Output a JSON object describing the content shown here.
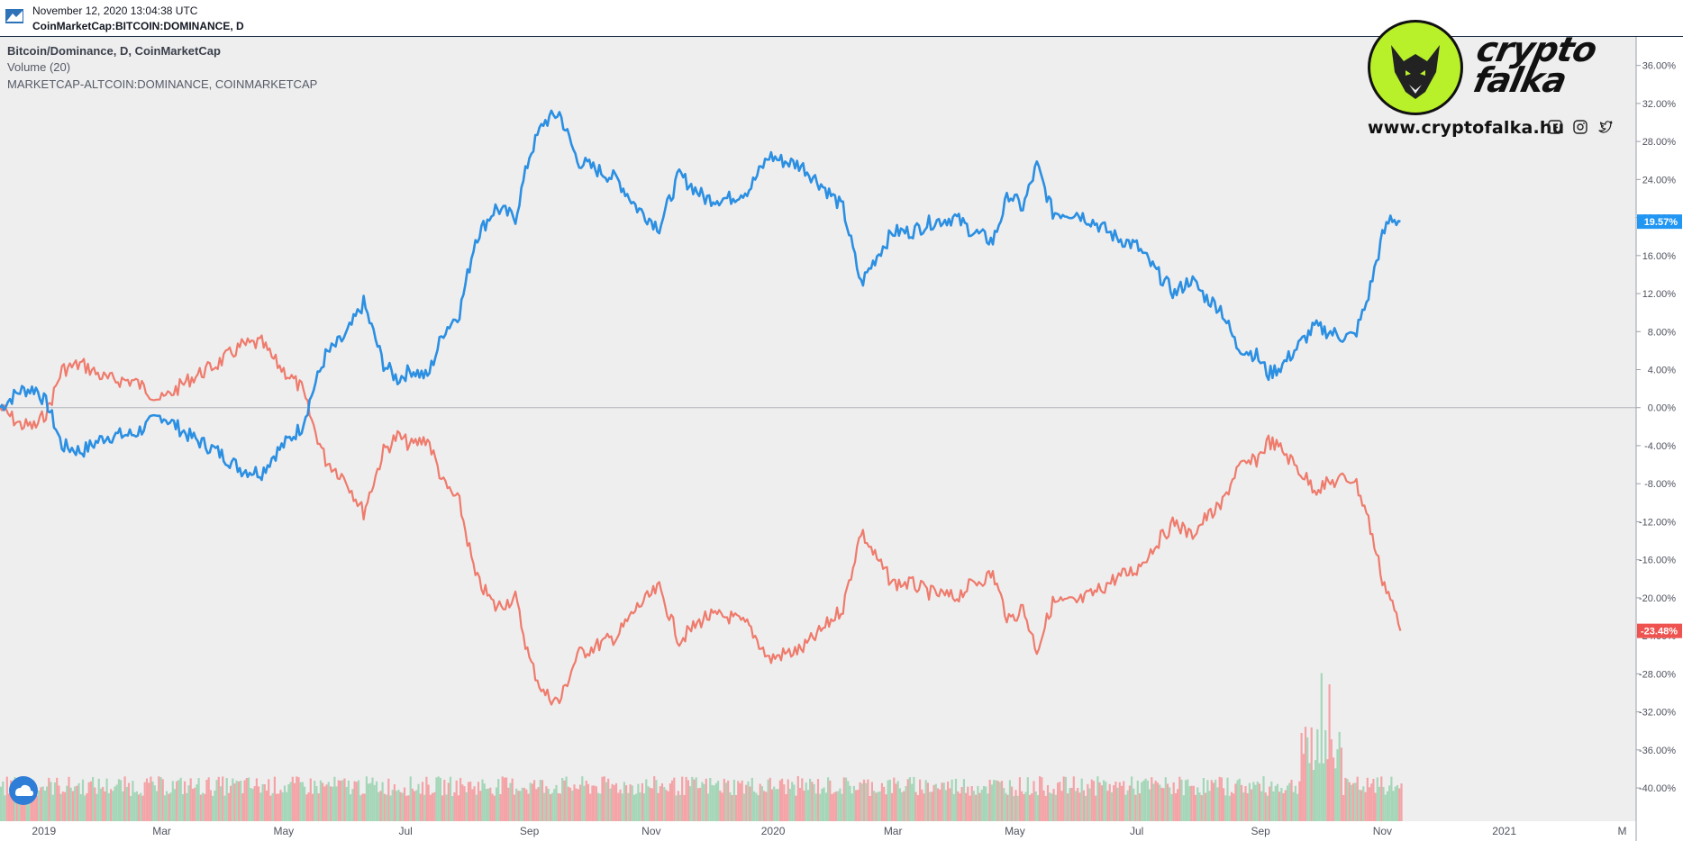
{
  "header": {
    "snapshot_date": "November 12, 2020 13:04:38 UTC",
    "symbol": "CoinMarketCap:BITCOIN:DOMINANCE, D"
  },
  "legend": {
    "main": "Bitcoin/Dominance, D, CoinMarketCap",
    "volume": "Volume (20)",
    "compare": "MARKETCAP-ALTCOIN:DOMINANCE, COINMARKETCAP"
  },
  "brand": {
    "name_line1": "crypto",
    "name_line2": "falka",
    "url": "www.cryptofalka.hu",
    "social_icons": [
      "facebook-icon",
      "instagram-icon",
      "twitter-icon"
    ]
  },
  "colors": {
    "btc": "#2b8fe2",
    "alt": "#ef7b6c",
    "vol_up": "#a5d6b8",
    "vol_down": "#f4a3a6",
    "plot_bg": "#eeeeef",
    "badge_btc": "#2196f3",
    "badge_alt": "#ef5350",
    "logo_bg": "#b8f02a"
  },
  "chart_data": {
    "type": "line",
    "y_unit": "%",
    "ylim": [
      -43.5,
      39
    ],
    "y_ticks": [
      "36.00%",
      "32.00%",
      "28.00%",
      "24.00%",
      "20.00%",
      "16.00%",
      "12.00%",
      "8.00%",
      "4.00%",
      "0.00%",
      "-4.00%",
      "-8.00%",
      "-12.00%",
      "-16.00%",
      "-20.00%",
      "-24.00%",
      "-28.00%",
      "-32.00%",
      "-36.00%",
      "-40.00%"
    ],
    "y_tick_values": [
      36,
      32,
      28,
      24,
      20,
      16,
      12,
      8,
      4,
      0,
      -4,
      -8,
      -12,
      -16,
      -20,
      -24,
      -28,
      -32,
      -36,
      -40
    ],
    "x_ticks": [
      "2019",
      "Mar",
      "May",
      "Jul",
      "Sep",
      "Nov",
      "2020",
      "Mar",
      "May",
      "Jul",
      "Sep",
      "Nov",
      "2021",
      "M"
    ],
    "x_tick_dates": [
      "2019-01-01",
      "2019-03-01",
      "2019-05-01",
      "2019-07-01",
      "2019-09-01",
      "2019-11-01",
      "2020-01-01",
      "2020-03-01",
      "2020-05-01",
      "2020-07-01",
      "2020-09-01",
      "2020-11-01",
      "2021-01-01",
      "2021-03-01"
    ],
    "x_range": [
      "2018-12-10",
      "2021-03-08"
    ],
    "grid": false,
    "zero_line": true,
    "last_values": {
      "btc": "19.57%",
      "alt": "-23.48%"
    },
    "series": [
      {
        "key": "btc",
        "x": [
          "2018-12-10",
          "2018-12-20",
          "2018-12-28",
          "2019-01-03",
          "2019-01-10",
          "2019-01-20",
          "2019-02-01",
          "2019-02-15",
          "2019-03-01",
          "2019-03-15",
          "2019-03-28",
          "2019-04-10",
          "2019-04-20",
          "2019-04-26",
          "2019-05-03",
          "2019-05-10",
          "2019-05-16",
          "2019-05-22",
          "2019-06-01",
          "2019-06-10",
          "2019-06-20",
          "2019-06-27",
          "2019-07-04",
          "2019-07-12",
          "2019-07-20",
          "2019-07-28",
          "2019-08-05",
          "2019-08-15",
          "2019-08-25",
          "2019-09-01",
          "2019-09-08",
          "2019-09-16",
          "2019-09-25",
          "2019-10-05",
          "2019-10-15",
          "2019-10-25",
          "2019-11-05",
          "2019-11-15",
          "2019-11-28",
          "2019-12-10",
          "2019-12-20",
          "2019-12-30",
          "2020-01-05",
          "2020-01-15",
          "2020-01-25",
          "2020-02-05",
          "2020-02-14",
          "2020-02-22",
          "2020-03-01",
          "2020-03-10",
          "2020-03-20",
          "2020-04-01",
          "2020-04-10",
          "2020-04-20",
          "2020-04-28",
          "2020-05-05",
          "2020-05-12",
          "2020-05-20",
          "2020-06-01",
          "2020-06-10",
          "2020-06-20",
          "2020-07-01",
          "2020-07-10",
          "2020-07-20",
          "2020-07-28",
          "2020-08-05",
          "2020-08-12",
          "2020-08-20",
          "2020-08-30",
          "2020-09-05",
          "2020-09-12",
          "2020-09-20",
          "2020-09-28",
          "2020-10-05",
          "2020-10-12",
          "2020-10-18",
          "2020-10-24",
          "2020-11-01",
          "2020-11-05",
          "2020-11-10"
        ],
        "values": [
          0,
          1.8,
          2,
          0.2,
          -4,
          -4.6,
          -3,
          -2.8,
          -0.8,
          -3,
          -4.5,
          -6.5,
          -6.8,
          -5,
          -3.5,
          -2,
          2,
          5.5,
          7.5,
          11,
          4.6,
          3,
          4,
          3.2,
          8,
          10,
          17.8,
          21,
          20,
          26.5,
          30,
          31,
          26,
          25,
          24,
          21,
          19,
          24.5,
          22,
          22,
          23,
          26.5,
          26,
          25.5,
          23.5,
          21,
          13,
          16,
          18.5,
          18.5,
          19.5,
          20,
          18.5,
          17.5,
          22.5,
          21,
          25.5,
          20.5,
          20.5,
          19.5,
          18,
          17,
          14.5,
          12,
          13.5,
          11.5,
          10.5,
          6.5,
          5.5,
          3.5,
          4.5,
          6.5,
          8.5,
          8,
          7.5,
          7.5,
          11,
          18,
          20,
          19.57
        ]
      },
      {
        "key": "alt",
        "x": [
          "2018-12-10",
          "2018-12-20",
          "2018-12-28",
          "2019-01-03",
          "2019-01-10",
          "2019-01-20",
          "2019-02-01",
          "2019-02-15",
          "2019-03-01",
          "2019-03-15",
          "2019-03-28",
          "2019-04-10",
          "2019-04-20",
          "2019-04-26",
          "2019-05-03",
          "2019-05-10",
          "2019-05-16",
          "2019-05-22",
          "2019-06-01",
          "2019-06-10",
          "2019-06-20",
          "2019-06-27",
          "2019-07-04",
          "2019-07-12",
          "2019-07-20",
          "2019-07-28",
          "2019-08-05",
          "2019-08-15",
          "2019-08-25",
          "2019-09-01",
          "2019-09-08",
          "2019-09-16",
          "2019-09-25",
          "2019-10-05",
          "2019-10-15",
          "2019-10-25",
          "2019-11-05",
          "2019-11-15",
          "2019-11-28",
          "2019-12-10",
          "2019-12-20",
          "2019-12-30",
          "2020-01-05",
          "2020-01-15",
          "2020-01-25",
          "2020-02-05",
          "2020-02-14",
          "2020-02-22",
          "2020-03-01",
          "2020-03-10",
          "2020-03-20",
          "2020-04-01",
          "2020-04-10",
          "2020-04-20",
          "2020-04-28",
          "2020-05-05",
          "2020-05-12",
          "2020-05-20",
          "2020-06-01",
          "2020-06-10",
          "2020-06-20",
          "2020-07-01",
          "2020-07-10",
          "2020-07-20",
          "2020-07-28",
          "2020-08-05",
          "2020-08-12",
          "2020-08-20",
          "2020-08-30",
          "2020-09-05",
          "2020-09-12",
          "2020-09-20",
          "2020-09-28",
          "2020-10-05",
          "2020-10-12",
          "2020-10-18",
          "2020-10-24",
          "2020-11-01",
          "2020-11-05",
          "2020-11-10"
        ],
        "values": [
          0,
          -1.8,
          -2,
          -0.2,
          4,
          4.6,
          3,
          2.8,
          0.8,
          3,
          4.5,
          6.5,
          6.8,
          5,
          3.5,
          2,
          -2,
          -5.5,
          -7.5,
          -11,
          -4.6,
          -3,
          -4,
          -3.2,
          -8,
          -10,
          -17.8,
          -21,
          -20,
          -26.5,
          -30,
          -31,
          -26,
          -25,
          -24,
          -21,
          -19,
          -24.5,
          -22,
          -22,
          -23,
          -26.5,
          -26,
          -25.5,
          -23.5,
          -21,
          -13,
          -16,
          -18.5,
          -18.5,
          -19.5,
          -20,
          -18.5,
          -17.5,
          -22.5,
          -21,
          -25.5,
          -20.5,
          -20.5,
          -19.5,
          -18,
          -17,
          -14.5,
          -12,
          -13.5,
          -11.5,
          -10.5,
          -6.5,
          -5.5,
          -3.5,
          -4.5,
          -6.5,
          -8.5,
          -8,
          -7.5,
          -7.5,
          -11,
          -18,
          -20,
          -23.48
        ]
      }
    ]
  }
}
